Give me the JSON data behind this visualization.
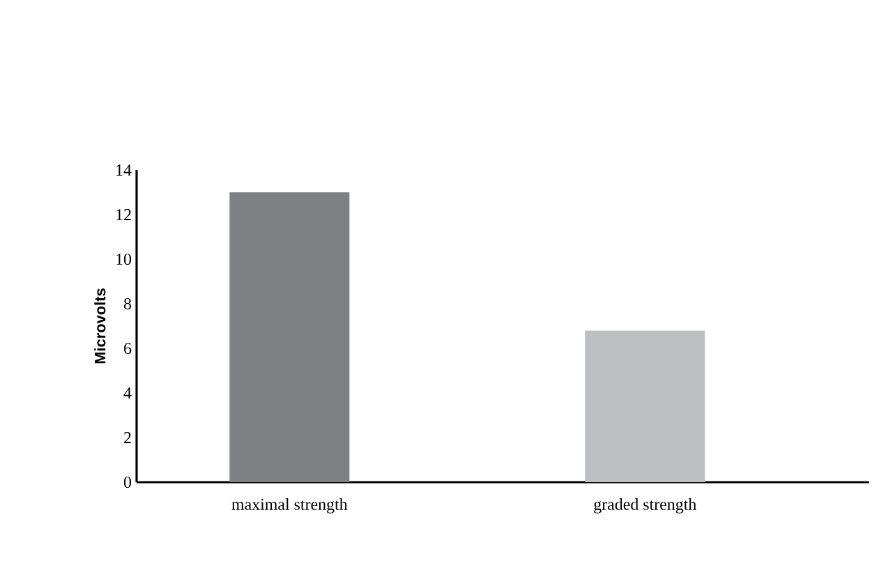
{
  "chart_data": {
    "type": "bar",
    "ylabel": "Microvolts",
    "categories": [
      "maximal strength",
      "graded strength"
    ],
    "values": [
      13,
      6.8
    ],
    "colors": [
      "#7f8084",
      "#bebfc1"
    ],
    "ylim": [
      0,
      14
    ],
    "yticks": [
      0,
      2,
      4,
      6,
      8,
      10,
      12,
      14
    ],
    "grid": false
  }
}
